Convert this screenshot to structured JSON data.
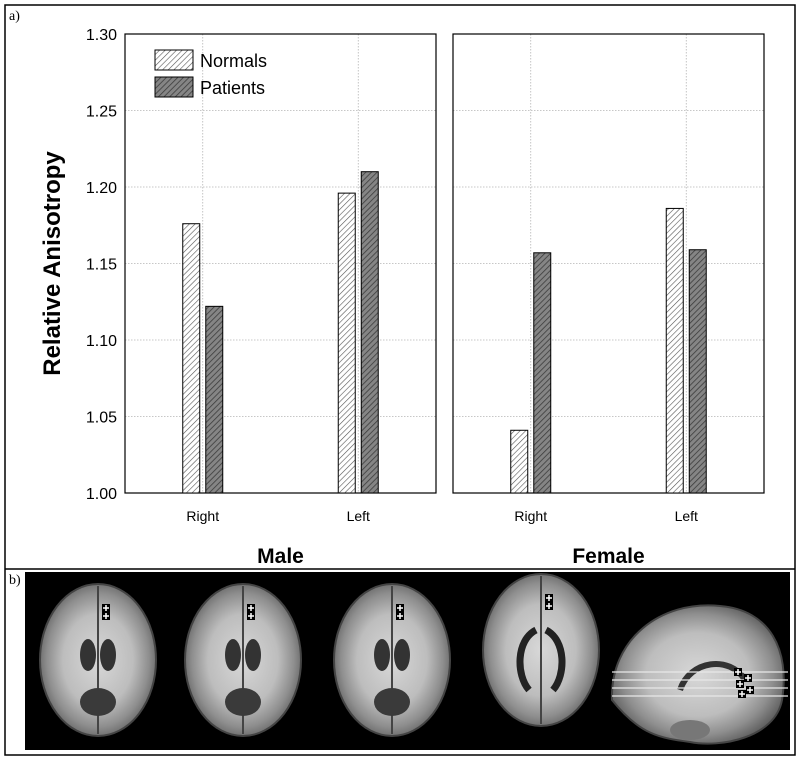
{
  "panel_labels": {
    "a": "a)",
    "b": "b)"
  },
  "chart_data": {
    "type": "bar",
    "ylabel": "Relative Anisotropy",
    "ylim": [
      1.0,
      1.3
    ],
    "yticks": [
      "1.00",
      "1.05",
      "1.10",
      "1.15",
      "1.20",
      "1.25",
      "1.30"
    ],
    "grid": true,
    "legend_position": "top-left",
    "legend": [
      "Normals",
      "Patients"
    ],
    "panels": [
      {
        "title": "Male",
        "categories": [
          "Right",
          "Left"
        ],
        "series": [
          {
            "name": "Normals",
            "values": [
              1.176,
              1.196
            ]
          },
          {
            "name": "Patients",
            "values": [
              1.122,
              1.21
            ]
          }
        ]
      },
      {
        "title": "Female",
        "categories": [
          "Right",
          "Left"
        ],
        "series": [
          {
            "name": "Normals",
            "values": [
              1.041,
              1.186
            ]
          },
          {
            "name": "Patients",
            "values": [
              1.157,
              1.159
            ]
          }
        ]
      }
    ]
  },
  "colors": {
    "normals_fill": "#ffffff",
    "normals_hatch": "#555555",
    "patients_fill": "#7a7a7a",
    "patients_hatch": "#444444",
    "grid": "#b5b5b5",
    "image_background": "#000000"
  },
  "brain_images": [
    {
      "view": "axial",
      "name": "brain-slice-1"
    },
    {
      "view": "axial",
      "name": "brain-slice-2"
    },
    {
      "view": "axial",
      "name": "brain-slice-3"
    },
    {
      "view": "axial",
      "name": "brain-slice-4"
    },
    {
      "view": "sagittal",
      "name": "brain-sagittal"
    }
  ]
}
